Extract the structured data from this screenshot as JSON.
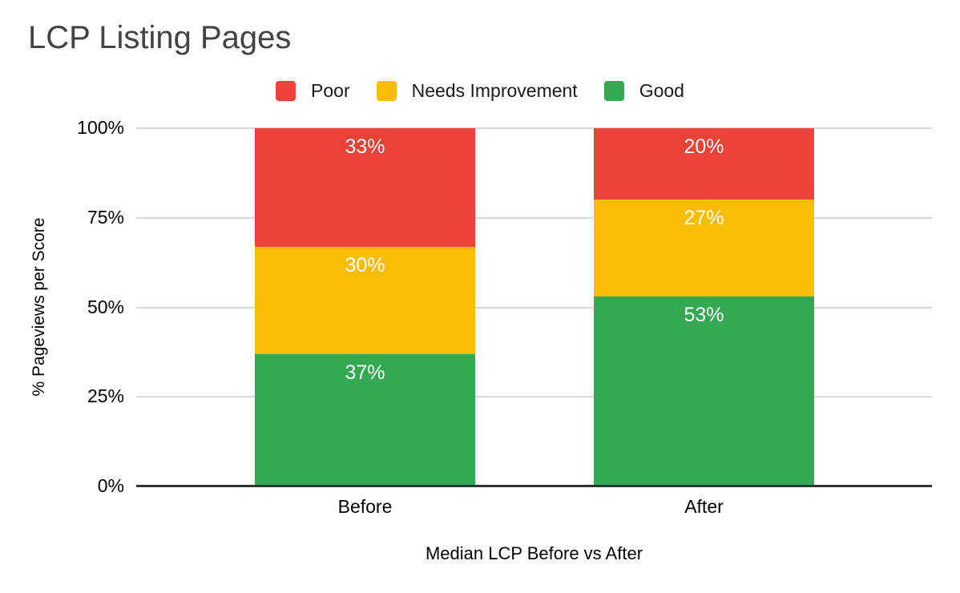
{
  "chart_title": "LCP Listing Pages",
  "legend": {
    "items": [
      {
        "label": "Poor",
        "color": "#EA4335"
      },
      {
        "label": "Needs Improvement",
        "color": "#FBBC04"
      },
      {
        "label": "Good",
        "color": "#34A853"
      }
    ]
  },
  "chart_data": {
    "type": "bar",
    "stacked": true,
    "stack_unit": "percent",
    "title": "LCP Listing Pages",
    "xlabel": "Median LCP Before vs After",
    "ylabel": "% Pageviews per Score",
    "categories": [
      "Before",
      "After"
    ],
    "series": [
      {
        "name": "Good",
        "color": "#34A853",
        "values": [
          37,
          53
        ]
      },
      {
        "name": "Needs Improvement",
        "color": "#FBBC04",
        "values": [
          30,
          27
        ]
      },
      {
        "name": "Poor",
        "color": "#EA4335",
        "values": [
          33,
          20
        ]
      }
    ],
    "data_label_format": "{value}%",
    "data_labels": [
      [
        "33%",
        "30%",
        "37%"
      ],
      [
        "20%",
        "27%",
        "53%"
      ]
    ],
    "ylim": [
      0,
      100
    ],
    "yticks": [
      {
        "value": 0,
        "label": "0%"
      },
      {
        "value": 25,
        "label": "25%"
      },
      {
        "value": 50,
        "label": "50%"
      },
      {
        "value": 75,
        "label": "75%"
      },
      {
        "value": 100,
        "label": "100%"
      }
    ],
    "grid": true,
    "legend_position": "top",
    "colors": {
      "grid": "#D9D9D9",
      "axis": "#333333",
      "title_text": "#434343",
      "axis_text": "#000000",
      "bar_label_text": "#FFFFFF",
      "background": "#FFFFFF"
    }
  }
}
